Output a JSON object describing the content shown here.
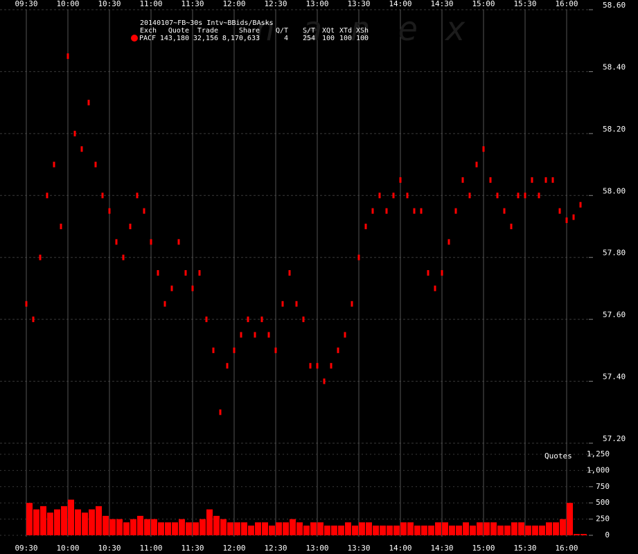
{
  "chart_data": [
    {
      "type": "scatter",
      "title": "20140107~FB~30s Intv~BBids/BAsks",
      "watermark": "nanex",
      "legend_columns": [
        "Exch",
        "Quote",
        "Trade",
        "Share",
        "Q/T",
        "S/T",
        "XQt",
        "XTd",
        "XSh"
      ],
      "legend_values": [
        {
          "value": 143180,
          "label": "143,180"
        },
        {
          "value": 32156,
          "label": "32,156"
        },
        {
          "value": 8170633,
          "label": "8,170,633"
        },
        4,
        254,
        100,
        100,
        100
      ],
      "x": [
        "09:30",
        "09:35",
        "09:40",
        "09:45",
        "09:50",
        "09:55",
        "10:00",
        "10:05",
        "10:10",
        "10:15",
        "10:20",
        "10:25",
        "10:30",
        "10:35",
        "10:40",
        "10:45",
        "10:50",
        "10:55",
        "11:00",
        "11:05",
        "11:10",
        "11:15",
        "11:20",
        "11:25",
        "11:30",
        "11:35",
        "11:40",
        "11:45",
        "11:50",
        "11:55",
        "12:00",
        "12:05",
        "12:10",
        "12:15",
        "12:20",
        "12:25",
        "12:30",
        "12:35",
        "12:40",
        "12:45",
        "12:50",
        "12:55",
        "13:00",
        "13:05",
        "13:10",
        "13:15",
        "13:20",
        "13:25",
        "13:30",
        "13:35",
        "13:40",
        "13:45",
        "13:50",
        "13:55",
        "14:00",
        "14:05",
        "14:10",
        "14:15",
        "14:20",
        "14:25",
        "14:30",
        "14:35",
        "14:40",
        "14:45",
        "14:50",
        "14:55",
        "15:00",
        "15:05",
        "15:10",
        "15:15",
        "15:20",
        "15:25",
        "15:30",
        "15:35",
        "15:40",
        "15:45",
        "15:50",
        "15:55",
        "16:00",
        "16:05",
        "16:10"
      ],
      "series": [
        {
          "name": "PACF",
          "color": "#ff0000",
          "values": [
            57.65,
            57.6,
            57.8,
            58.0,
            58.1,
            57.9,
            58.45,
            58.2,
            58.15,
            58.3,
            58.1,
            58.0,
            57.95,
            57.85,
            57.8,
            57.9,
            58.0,
            57.95,
            57.85,
            57.75,
            57.65,
            57.7,
            57.85,
            57.75,
            57.7,
            57.75,
            57.6,
            57.5,
            57.3,
            57.45,
            57.5,
            57.55,
            57.6,
            57.55,
            57.6,
            57.55,
            57.5,
            57.65,
            57.75,
            57.65,
            57.6,
            57.45,
            57.45,
            57.4,
            57.45,
            57.5,
            57.55,
            57.65,
            57.8,
            57.9,
            57.95,
            58.0,
            57.95,
            58.0,
            58.05,
            58.0,
            57.95,
            57.95,
            57.75,
            57.7,
            57.75,
            57.85,
            57.95,
            58.05,
            58.0,
            58.1,
            58.15,
            58.05,
            58.0,
            57.95,
            57.9,
            58.0,
            58.0,
            58.05,
            58.0,
            58.05,
            58.05,
            57.95,
            57.92,
            57.93,
            57.97
          ]
        }
      ],
      "xlim": [
        "09:26",
        "16:16"
      ],
      "xticks": [
        "09:30",
        "10:00",
        "10:30",
        "11:00",
        "11:30",
        "12:00",
        "12:30",
        "13:00",
        "13:30",
        "14:00",
        "14:30",
        "15:00",
        "15:30",
        "16:00"
      ],
      "ylim": [
        57.2,
        58.6
      ],
      "yticks": [
        {
          "value": 57.2,
          "label": "57.20"
        },
        {
          "value": 57.4,
          "label": "57.40"
        },
        {
          "value": 57.6,
          "label": "57.60"
        },
        {
          "value": 57.8,
          "label": "57.80"
        },
        {
          "value": 58.0,
          "label": "58.00"
        },
        {
          "value": 58.2,
          "label": "58.20"
        },
        {
          "value": 58.4,
          "label": "58.40"
        },
        {
          "value": 58.6,
          "label": "58.60"
        }
      ],
      "grid": true
    },
    {
      "type": "bar",
      "annotation": "Quotes",
      "color": "#ff0000",
      "x": [
        "09:30",
        "09:35",
        "09:40",
        "09:45",
        "09:50",
        "09:55",
        "10:00",
        "10:05",
        "10:10",
        "10:15",
        "10:20",
        "10:25",
        "10:30",
        "10:35",
        "10:40",
        "10:45",
        "10:50",
        "10:55",
        "11:00",
        "11:05",
        "11:10",
        "11:15",
        "11:20",
        "11:25",
        "11:30",
        "11:35",
        "11:40",
        "11:45",
        "11:50",
        "11:55",
        "12:00",
        "12:05",
        "12:10",
        "12:15",
        "12:20",
        "12:25",
        "12:30",
        "12:35",
        "12:40",
        "12:45",
        "12:50",
        "12:55",
        "13:00",
        "13:05",
        "13:10",
        "13:15",
        "13:20",
        "13:25",
        "13:30",
        "13:35",
        "13:40",
        "13:45",
        "13:50",
        "13:55",
        "14:00",
        "14:05",
        "14:10",
        "14:15",
        "14:20",
        "14:25",
        "14:30",
        "14:35",
        "14:40",
        "14:45",
        "14:50",
        "14:55",
        "15:00",
        "15:05",
        "15:10",
        "15:15",
        "15:20",
        "15:25",
        "15:30",
        "15:35",
        "15:40",
        "15:45",
        "15:50",
        "15:55",
        "16:00",
        "16:05",
        "16:10"
      ],
      "values": [
        500,
        400,
        450,
        350,
        400,
        450,
        550,
        400,
        350,
        400,
        450,
        300,
        250,
        250,
        200,
        250,
        300,
        250,
        250,
        200,
        200,
        200,
        250,
        200,
        200,
        250,
        400,
        300,
        250,
        200,
        200,
        200,
        150,
        200,
        200,
        150,
        200,
        200,
        250,
        200,
        150,
        200,
        200,
        150,
        150,
        150,
        200,
        150,
        200,
        200,
        150,
        150,
        150,
        150,
        200,
        200,
        150,
        150,
        150,
        200,
        200,
        150,
        150,
        200,
        150,
        200,
        200,
        200,
        150,
        150,
        200,
        200,
        150,
        150,
        150,
        200,
        200,
        250,
        500,
        20,
        20
      ],
      "xlim": [
        "09:26",
        "16:16"
      ],
      "ylim": [
        0,
        1250
      ],
      "yticks": [
        0,
        250,
        500,
        750,
        {
          "value": 1000,
          "label": "1,000"
        },
        {
          "value": 1250,
          "label": "1,250"
        }
      ]
    }
  ]
}
